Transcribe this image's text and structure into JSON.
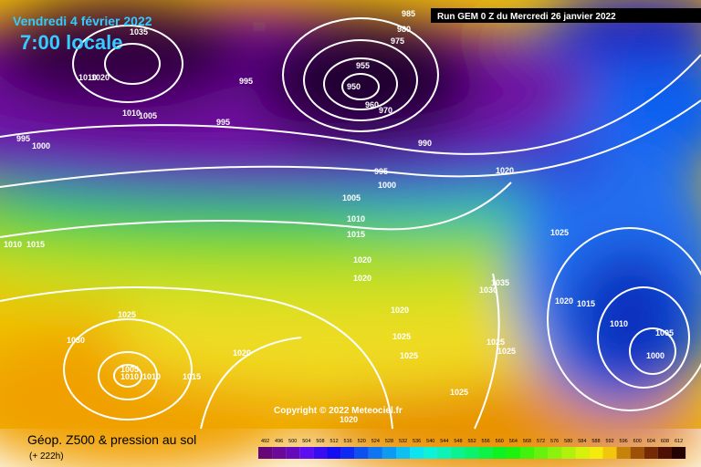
{
  "header": {
    "date": "Vendredi 4 février 2022",
    "time": "7:00 locale",
    "run": "Run GEM 0 Z du Mercredi 26 janvier 2022"
  },
  "copyright": "Copyright © 2022 Meteociel.fr",
  "footer": {
    "title": "Géop. Z500 & pression au sol",
    "lead": "(+ 222h)"
  },
  "colorbar": {
    "labels": [
      492,
      496,
      500,
      504,
      508,
      512,
      516,
      520,
      524,
      528,
      532,
      536,
      540,
      544,
      548,
      552,
      556,
      560,
      564,
      568,
      572,
      576,
      580,
      584,
      588,
      592,
      596,
      600,
      604,
      608,
      612
    ]
  },
  "isobar_labels": [
    "1035",
    "985",
    "980",
    "975",
    "955",
    "950",
    "960",
    "970",
    "1010",
    "1020",
    "995",
    "1010",
    "1005",
    "995",
    "995",
    "1000",
    "990",
    "995",
    "1000",
    "1005",
    "1020",
    "1010",
    "1015",
    "1010",
    "1015",
    "1025",
    "1020",
    "1020",
    "1035",
    "1030",
    "1020",
    "1015",
    "1025",
    "1010",
    "1020",
    "1030",
    "1025",
    "1005",
    "1025",
    "1025",
    "1025",
    "1020",
    "1000",
    "1005",
    "1010",
    "1010",
    "1015",
    "1025",
    "1020"
  ]
}
